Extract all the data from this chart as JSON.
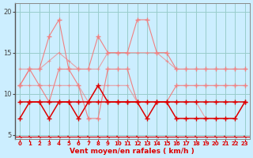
{
  "x": [
    0,
    1,
    2,
    3,
    4,
    5,
    6,
    7,
    8,
    9,
    10,
    11,
    12,
    13,
    14,
    15,
    16,
    17,
    18,
    19,
    20,
    21,
    22,
    23
  ],
  "rafales_top": [
    11,
    13,
    13,
    17,
    19,
    13,
    13,
    13,
    17,
    15,
    15,
    15,
    19,
    19,
    15,
    15,
    13,
    13,
    13,
    13,
    13,
    13,
    13,
    13
  ],
  "rafales_bot": [
    11,
    13,
    11,
    9,
    13,
    13,
    11,
    7,
    7,
    13,
    13,
    13,
    9,
    9,
    9,
    9,
    11,
    11,
    11,
    11,
    11,
    11,
    11,
    11
  ],
  "moy_top": [
    13,
    13,
    13,
    14,
    15,
    14,
    13,
    13,
    13,
    15,
    15,
    15,
    15,
    15,
    15,
    14,
    13,
    13,
    13,
    13,
    13,
    13,
    13,
    13
  ],
  "moy_bot": [
    11,
    11,
    11,
    11,
    11,
    11,
    11,
    9,
    11,
    11,
    11,
    11,
    9,
    9,
    9,
    9,
    9,
    9,
    9,
    7,
    7,
    7,
    7,
    9
  ],
  "wind1": [
    9,
    9,
    9,
    9,
    9,
    9,
    9,
    9,
    9,
    9,
    9,
    9,
    9,
    9,
    9,
    9,
    9,
    9,
    9,
    9,
    9,
    9,
    9,
    9
  ],
  "wind2": [
    7,
    9,
    9,
    7,
    9,
    9,
    7,
    9,
    11,
    9,
    9,
    9,
    9,
    7,
    9,
    9,
    7,
    7,
    7,
    7,
    7,
    7,
    7,
    9
  ],
  "xlabel": "Vent moyen/en rafales ( km/h )",
  "bg_color": "#cceeff",
  "grid_color": "#99cccc",
  "light_pink": "#f08080",
  "dark_red": "#dd0000",
  "ylim": [
    4.5,
    21.0
  ],
  "yticks": [
    5,
    10,
    15,
    20
  ],
  "xticks": [
    0,
    1,
    2,
    3,
    4,
    5,
    6,
    7,
    8,
    9,
    10,
    11,
    12,
    13,
    14,
    15,
    16,
    17,
    18,
    19,
    20,
    21,
    22,
    23
  ]
}
